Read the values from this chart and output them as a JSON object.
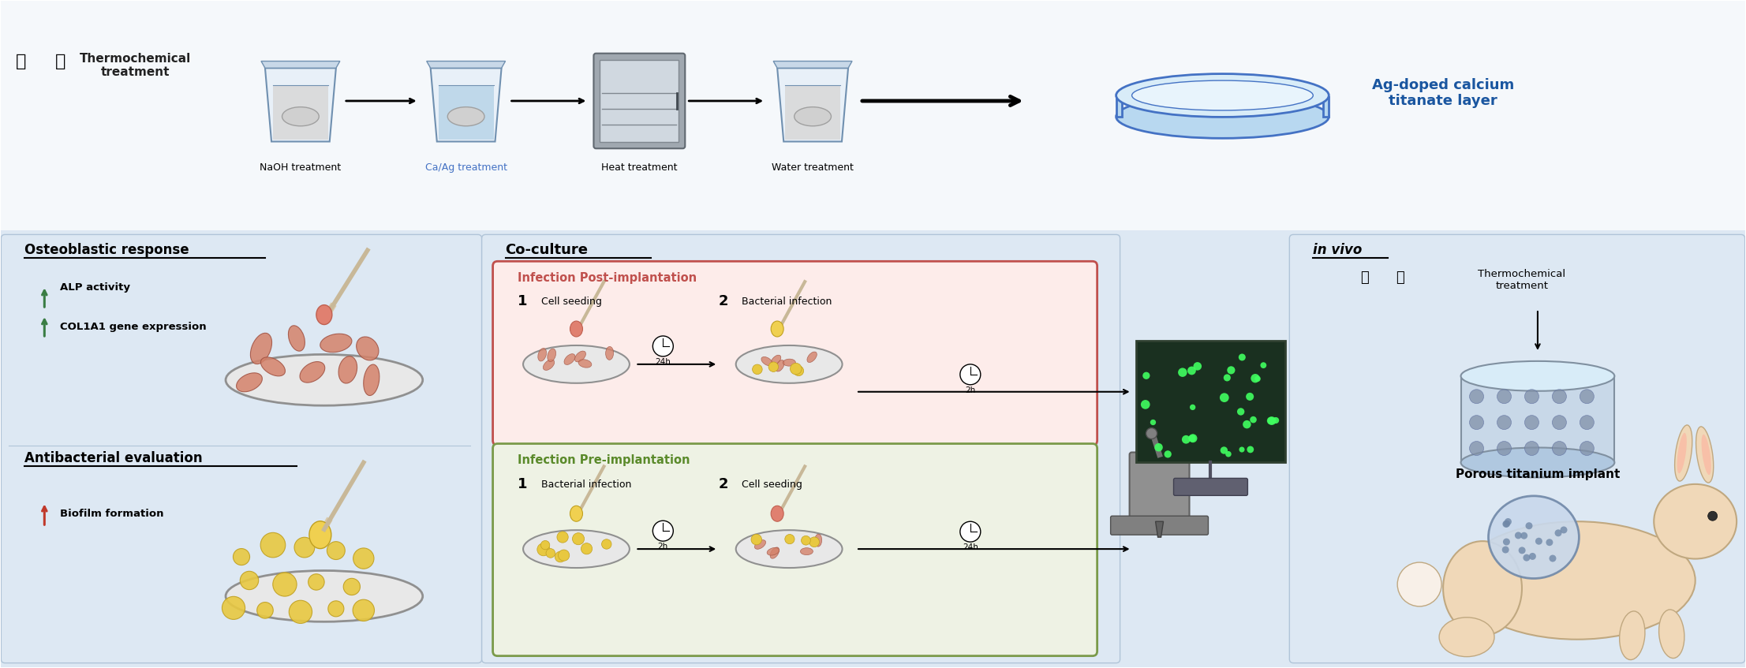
{
  "figure_width": 22.13,
  "figure_height": 8.47,
  "bg_color": "#ffffff",
  "top_section": {
    "title": "Thermochemical\ntreatment",
    "steps": [
      "NaOH treatment",
      "Ca/Ag treatment",
      "Heat treatment",
      "Water treatment"
    ],
    "final_label": "Ag-doped calcium\ntitanate layer",
    "step_colors": [
      "#000000",
      "#4472C4",
      "#000000",
      "#000000"
    ]
  },
  "bottom_left": {
    "panel1_title": "Osteoblastic response",
    "panel1_arrow_color": "#3a7d44",
    "panel2_title": "Antibacterial evaluation",
    "panel2_arrow_color": "#c0392b"
  },
  "bottom_center": {
    "title": "Co-culture",
    "box1_title": "Infection Post-implantation",
    "box1_bg": "#fdecea",
    "box1_border": "#c0504d",
    "box1_title_color": "#c0504d",
    "box2_title": "Infection Pre-implantation",
    "box2_bg": "#eef2e4",
    "box2_border": "#7a9a4a",
    "box2_title_color": "#5a8a2a"
  },
  "bottom_right": {
    "in_vivo_label": "in vivo",
    "thermo_label": "Thermochemical\ntreatment",
    "implant_label": "Porous titanium implant"
  },
  "colors": {
    "panel_bg": "#dde8f3",
    "panel_border": "#b0c4d8",
    "beaker_body": "#e8f0f8",
    "beaker_edge": "#7090b0",
    "liquid_naoh": "#d8d8d8",
    "liquid_caag": "#b8d4e8",
    "liquid_heat": "#d8d8d8",
    "liquid_water": "#d8d8d8",
    "dish_face": "#b8d8f0",
    "dish_edge": "#4472C4",
    "final_text_color": "#1a56a0",
    "cell_face": "#d4826a",
    "cell_edge": "#a05040",
    "bacteria_face": "#e8c840",
    "bacteria_edge": "#c0a020",
    "rabbit_body": "#f0d8b8",
    "rabbit_edge": "#c0a880",
    "implant_cyl": "#c8d8e8",
    "implant_edge": "#8090a0"
  }
}
